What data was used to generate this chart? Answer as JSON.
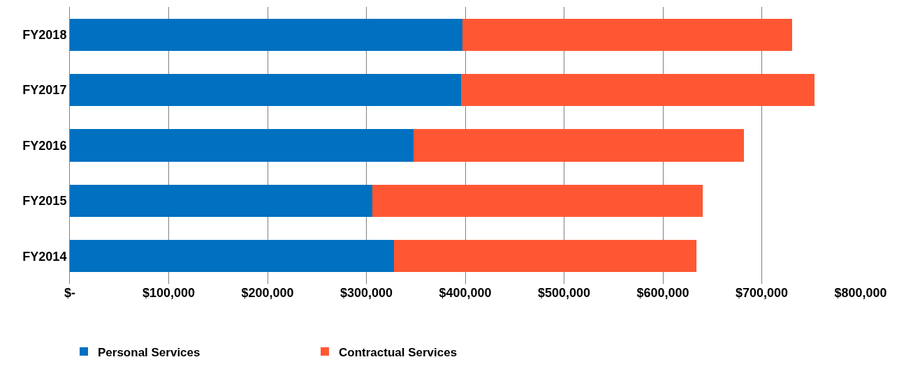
{
  "chart_data": {
    "type": "bar",
    "orientation": "horizontal",
    "stacked": true,
    "categories": [
      "FY2018",
      "FY2017",
      "FY2016",
      "FY2015",
      "FY2014"
    ],
    "series": [
      {
        "name": "Personal Services",
        "color": "#0070c0",
        "values": [
          397000,
          396000,
          348000,
          306000,
          328000
        ]
      },
      {
        "name": "Contractual Services",
        "color": "#ff5733",
        "values": [
          334000,
          357000,
          334000,
          334000,
          306000
        ]
      }
    ],
    "xlim": [
      0,
      800000
    ],
    "xticks": [
      {
        "value": 0,
        "label": "$-"
      },
      {
        "value": 100000,
        "label": "$100,000"
      },
      {
        "value": 200000,
        "label": "$200,000"
      },
      {
        "value": 300000,
        "label": "$300,000"
      },
      {
        "value": 400000,
        "label": "$400,000"
      },
      {
        "value": 500000,
        "label": "$500,000"
      },
      {
        "value": 600000,
        "label": "$600,000"
      },
      {
        "value": 700000,
        "label": "$700,000"
      },
      {
        "value": 800000,
        "label": "$800,000"
      }
    ],
    "grid": "x",
    "legend": "bottom left"
  }
}
